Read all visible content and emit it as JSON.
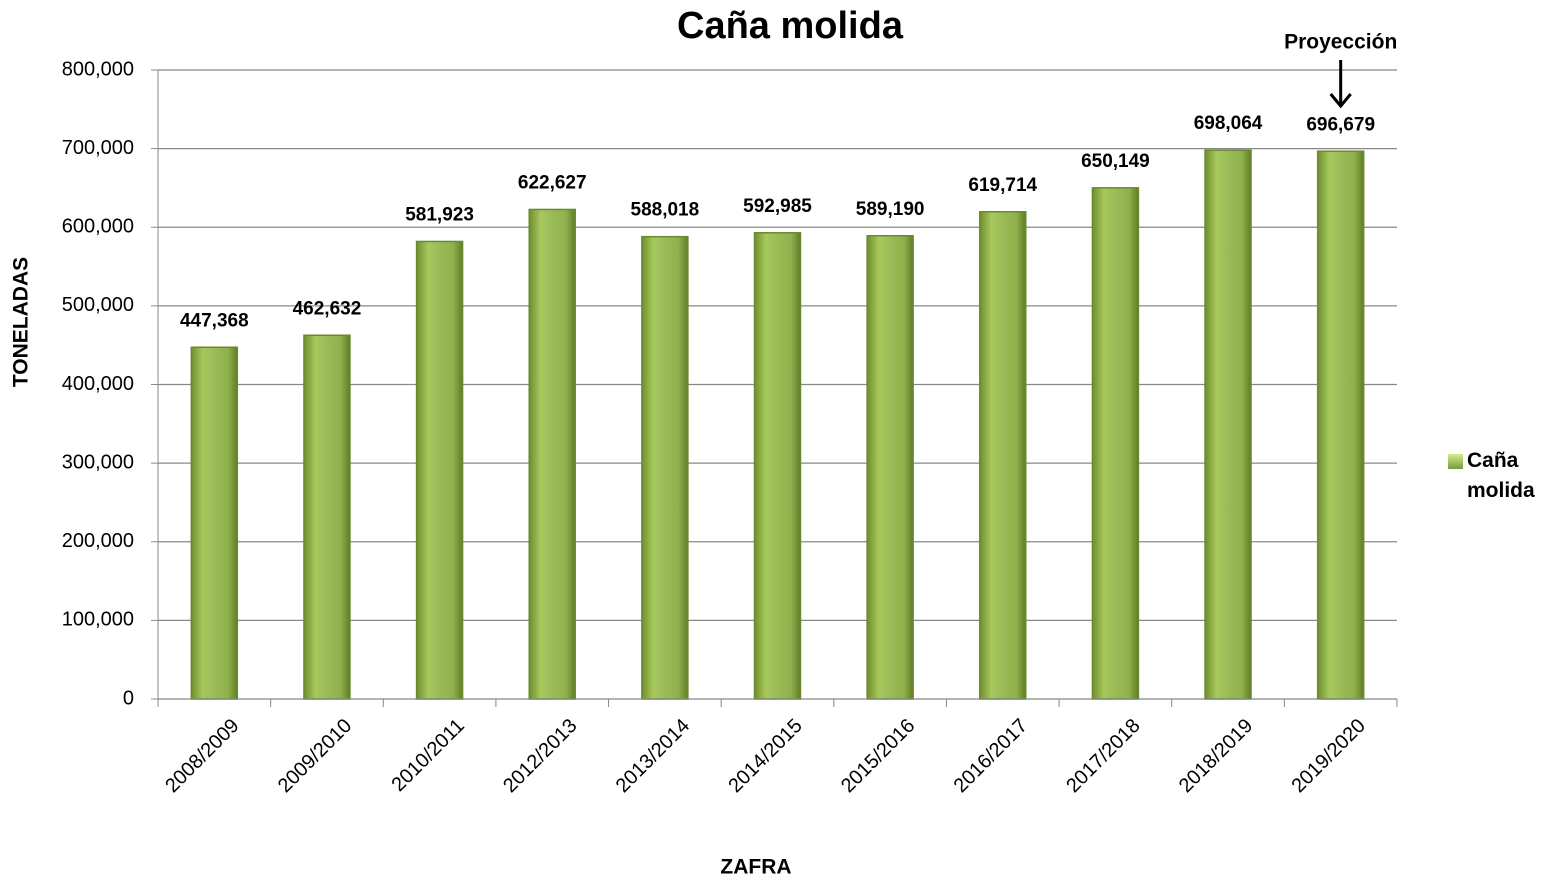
{
  "chart_data": {
    "type": "bar",
    "title": "Caña molida",
    "x_label": "ZAFRA",
    "y_label": "TONELADAS",
    "annotation": "Proyección",
    "categories": [
      "2008/2009",
      "2009/2010",
      "2010/2011",
      "2012/2013",
      "2013/2014",
      "2014/2015",
      "2015/2016",
      "2016/2017",
      "2017/2018",
      "2018/2019",
      "2019/2020"
    ],
    "series": [
      {
        "name": "Caña molida",
        "color": "#9bbb59",
        "values": [
          447368,
          462632,
          581923,
          622627,
          588018,
          592985,
          589190,
          619714,
          650149,
          698064,
          696679
        ],
        "value_labels": [
          "447,368",
          "462,632",
          "581,923",
          "622,627",
          "588,018",
          "592,985",
          "589,190",
          "619,714",
          "650,149",
          "698,064",
          "696,679"
        ]
      }
    ],
    "ylim": [
      0,
      800000
    ],
    "yticks": [
      0,
      {
        "value": 100000,
        "label": "100,000"
      },
      {
        "value": 200000,
        "label": "200,000"
      },
      {
        "value": 300000,
        "label": "300,000"
      },
      {
        "value": 400000,
        "label": "400,000"
      },
      {
        "value": 500000,
        "label": "500,000"
      },
      {
        "value": 600000,
        "label": "600,000"
      },
      {
        "value": 700000,
        "label": "700,000"
      },
      {
        "value": 800000,
        "label": "800,000"
      }
    ],
    "grid": true,
    "legend": "right"
  }
}
